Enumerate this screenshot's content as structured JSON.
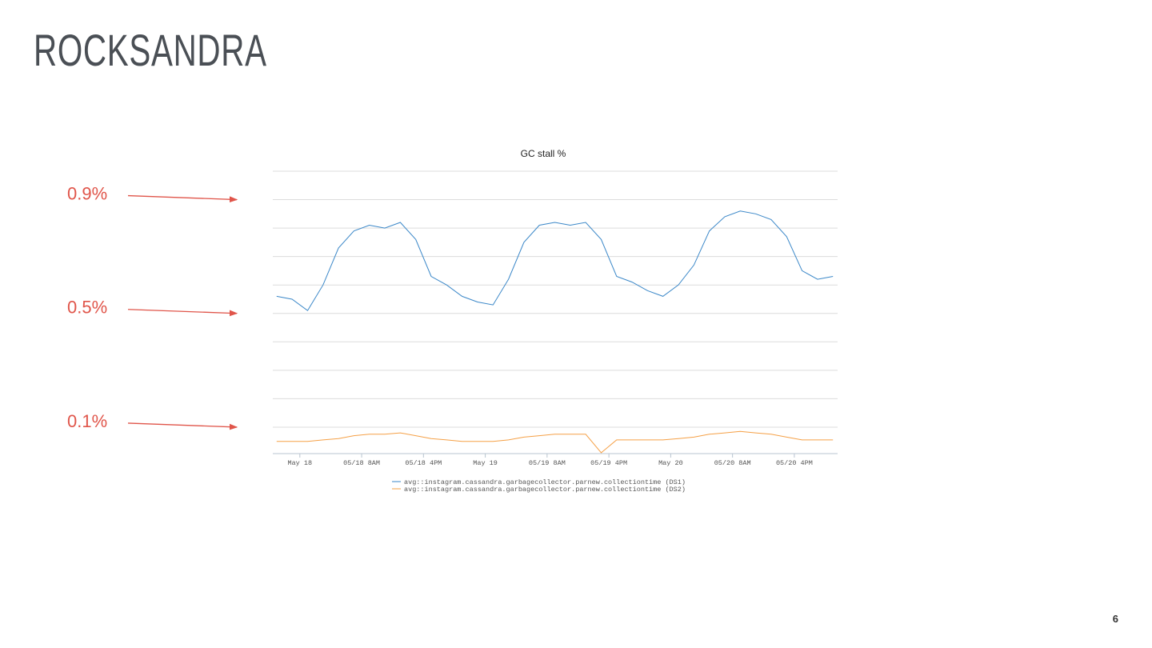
{
  "slide": {
    "title": "ROCKSANDRA",
    "page_number": "6"
  },
  "chart_data": {
    "type": "line",
    "title": "GC stall %",
    "x": [
      -3,
      -1,
      1,
      3,
      5,
      7,
      9,
      11,
      13,
      15,
      17,
      19,
      21,
      23,
      25,
      27,
      29,
      31,
      33,
      35,
      37,
      39,
      41,
      43,
      45,
      47,
      49,
      51,
      53,
      55,
      57,
      59,
      61,
      63,
      65,
      67,
      69
    ],
    "series": [
      {
        "name": "avg::instagram.cassandra.garbagecollector.parnew.collectiontime (DS1)",
        "color": "#3a87c8",
        "values": [
          0.56,
          0.55,
          0.51,
          0.6,
          0.73,
          0.79,
          0.81,
          0.8,
          0.82,
          0.76,
          0.63,
          0.6,
          0.56,
          0.54,
          0.53,
          0.62,
          0.75,
          0.81,
          0.82,
          0.81,
          0.82,
          0.76,
          0.63,
          0.61,
          0.58,
          0.56,
          0.6,
          0.67,
          0.79,
          0.84,
          0.86,
          0.85,
          0.83,
          0.77,
          0.65,
          0.62,
          0.63
        ]
      },
      {
        "name": "avg::instagram.cassandra.garbagecollector.parnew.collectiontime (DS2)",
        "color": "#f5a046",
        "values": [
          0.05,
          0.05,
          0.05,
          0.055,
          0.06,
          0.07,
          0.075,
          0.075,
          0.08,
          0.07,
          0.06,
          0.055,
          0.05,
          0.05,
          0.05,
          0.055,
          0.065,
          0.07,
          0.075,
          0.075,
          0.075,
          0.01,
          0.055,
          0.055,
          0.055,
          0.055,
          0.06,
          0.065,
          0.075,
          0.08,
          0.085,
          0.08,
          0.075,
          0.065,
          0.055,
          0.055,
          0.055
        ]
      }
    ],
    "xlim": [
      -3.5,
      69.6
    ],
    "xticks": [
      {
        "value": 0,
        "label": "May 18"
      },
      {
        "value": 8,
        "label": "05/18 8AM"
      },
      {
        "value": 16,
        "label": "05/18 4PM"
      },
      {
        "value": 24,
        "label": "May 19"
      },
      {
        "value": 32,
        "label": "05/19 8AM"
      },
      {
        "value": 40,
        "label": "05/19 4PM"
      },
      {
        "value": 48,
        "label": "May 20"
      },
      {
        "value": 56,
        "label": "05/20 8AM"
      },
      {
        "value": 64,
        "label": "05/20 4PM"
      }
    ],
    "ylim": [
      0,
      1.0
    ],
    "yticks": [
      0.1,
      0.2,
      0.3,
      0.4,
      0.5,
      0.6,
      0.7,
      0.8,
      0.9,
      1.0
    ],
    "ytick_labels": false,
    "grid": true,
    "annotation_color": "#e0554a",
    "annotations": [
      {
        "label": "0.9%",
        "value": 0.9
      },
      {
        "label": "0.5%",
        "value": 0.5
      },
      {
        "label": "0.1%",
        "value": 0.1
      }
    ]
  }
}
